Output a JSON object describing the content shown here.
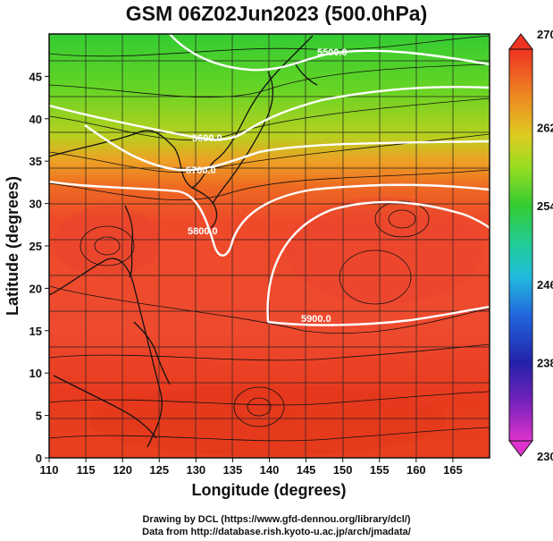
{
  "title": "GSM 06Z02Jun2023 (500.0hPa)",
  "credits": {
    "line1": "Drawing by DCL (https://www.gfd-dennou.org/library/dcl/)",
    "line2": "Data from http://database.rish.kyoto-u.ac.jp/arch/jmadata/"
  },
  "chart_data": {
    "type": "heatmap",
    "xlabel": "Longitude (degrees)",
    "ylabel": "Latitude  (degrees)",
    "xlim": [
      110,
      170
    ],
    "ylim": [
      0,
      50
    ],
    "x_ticks": [
      "110",
      "115",
      "120",
      "125",
      "130",
      "135",
      "140",
      "145",
      "150",
      "155",
      "160",
      "165"
    ],
    "y_ticks": [
      "0",
      "5",
      "10",
      "15",
      "20",
      "25",
      "30",
      "35",
      "40",
      "45"
    ],
    "colorbar": {
      "min": 230,
      "max": 270,
      "tick_labels": [
        "270",
        "262",
        "254",
        "246",
        "238",
        "230"
      ],
      "colors": [
        "#cc22cc",
        "#2222aa",
        "#2266dd",
        "#22cccc",
        "#22cc44",
        "#77dd22",
        "#ddcc22",
        "#ee8822",
        "#ee3322",
        "#dd2211"
      ]
    },
    "contours": [
      {
        "label": "5500.0"
      },
      {
        "label": "5600.0"
      },
      {
        "label": "5700.0"
      },
      {
        "label": "5800.0"
      },
      {
        "label": "5900.0"
      }
    ],
    "grid": true
  }
}
